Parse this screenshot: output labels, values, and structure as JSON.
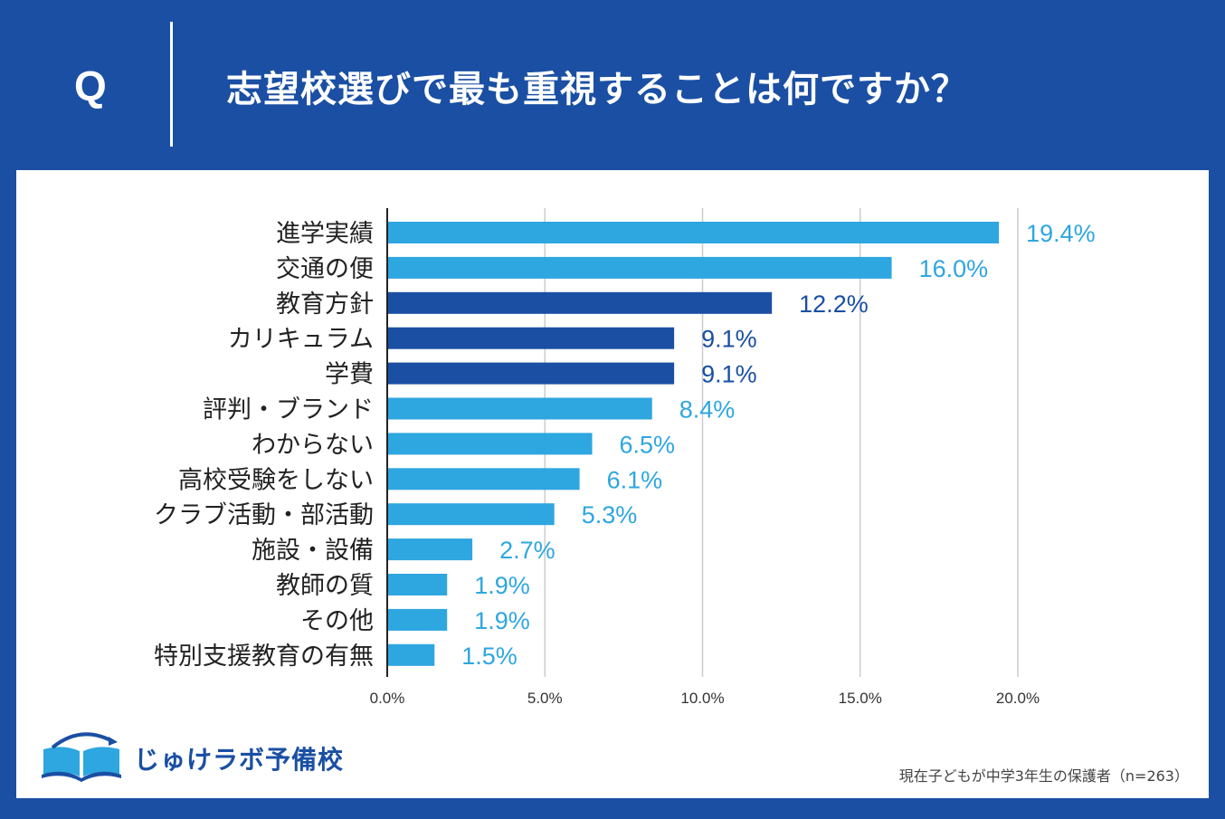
{
  "header": {
    "q_mark": "Q",
    "question": "志望校選びで最も重視することは何ですか？"
  },
  "chart_data": {
    "type": "bar",
    "orientation": "horizontal",
    "title": "志望校選びで最も重視することは何ですか？",
    "categories": [
      "進学実績",
      "交通の便",
      "教育方針",
      "カリキュラム",
      "学費",
      "評判・ブランド",
      "わからない",
      "高校受験をしない",
      "クラブ活動・部活動",
      "施設・設備",
      "教師の質",
      "その他",
      "特別支援教育の有無"
    ],
    "values": [
      19.4,
      16.0,
      12.2,
      9.1,
      9.1,
      8.4,
      6.5,
      6.1,
      5.3,
      2.7,
      1.9,
      1.9,
      1.5
    ],
    "value_labels": [
      "19.4%",
      "16.0%",
      "12.2%",
      "9.1%",
      "9.1%",
      "8.4%",
      "6.5%",
      "6.1%",
      "5.3%",
      "2.7%",
      "1.9%",
      "1.9%",
      "1.5%"
    ],
    "highlighted": [
      false,
      false,
      true,
      true,
      true,
      false,
      false,
      false,
      false,
      false,
      false,
      false,
      false
    ],
    "xlim": [
      0,
      20
    ],
    "xticks": [
      0,
      5,
      10,
      15,
      20
    ],
    "xtick_labels": [
      "0.0%",
      "5.0%",
      "10.0%",
      "15.0%",
      "20.0%"
    ],
    "grid": true,
    "colors": {
      "normal": "#2ea6e0",
      "highlight": "#1a4fa3",
      "axis": "#222222",
      "grid": "#cccccc"
    }
  },
  "footer": {
    "logo_text": "じゅけラボ予備校",
    "logo_icon": "open-book-icon",
    "note": "現在子どもが中学3年生の保護者（n=263）"
  },
  "colors": {
    "brand_blue": "#1a4fa3",
    "bar_light": "#2ea6e0"
  }
}
